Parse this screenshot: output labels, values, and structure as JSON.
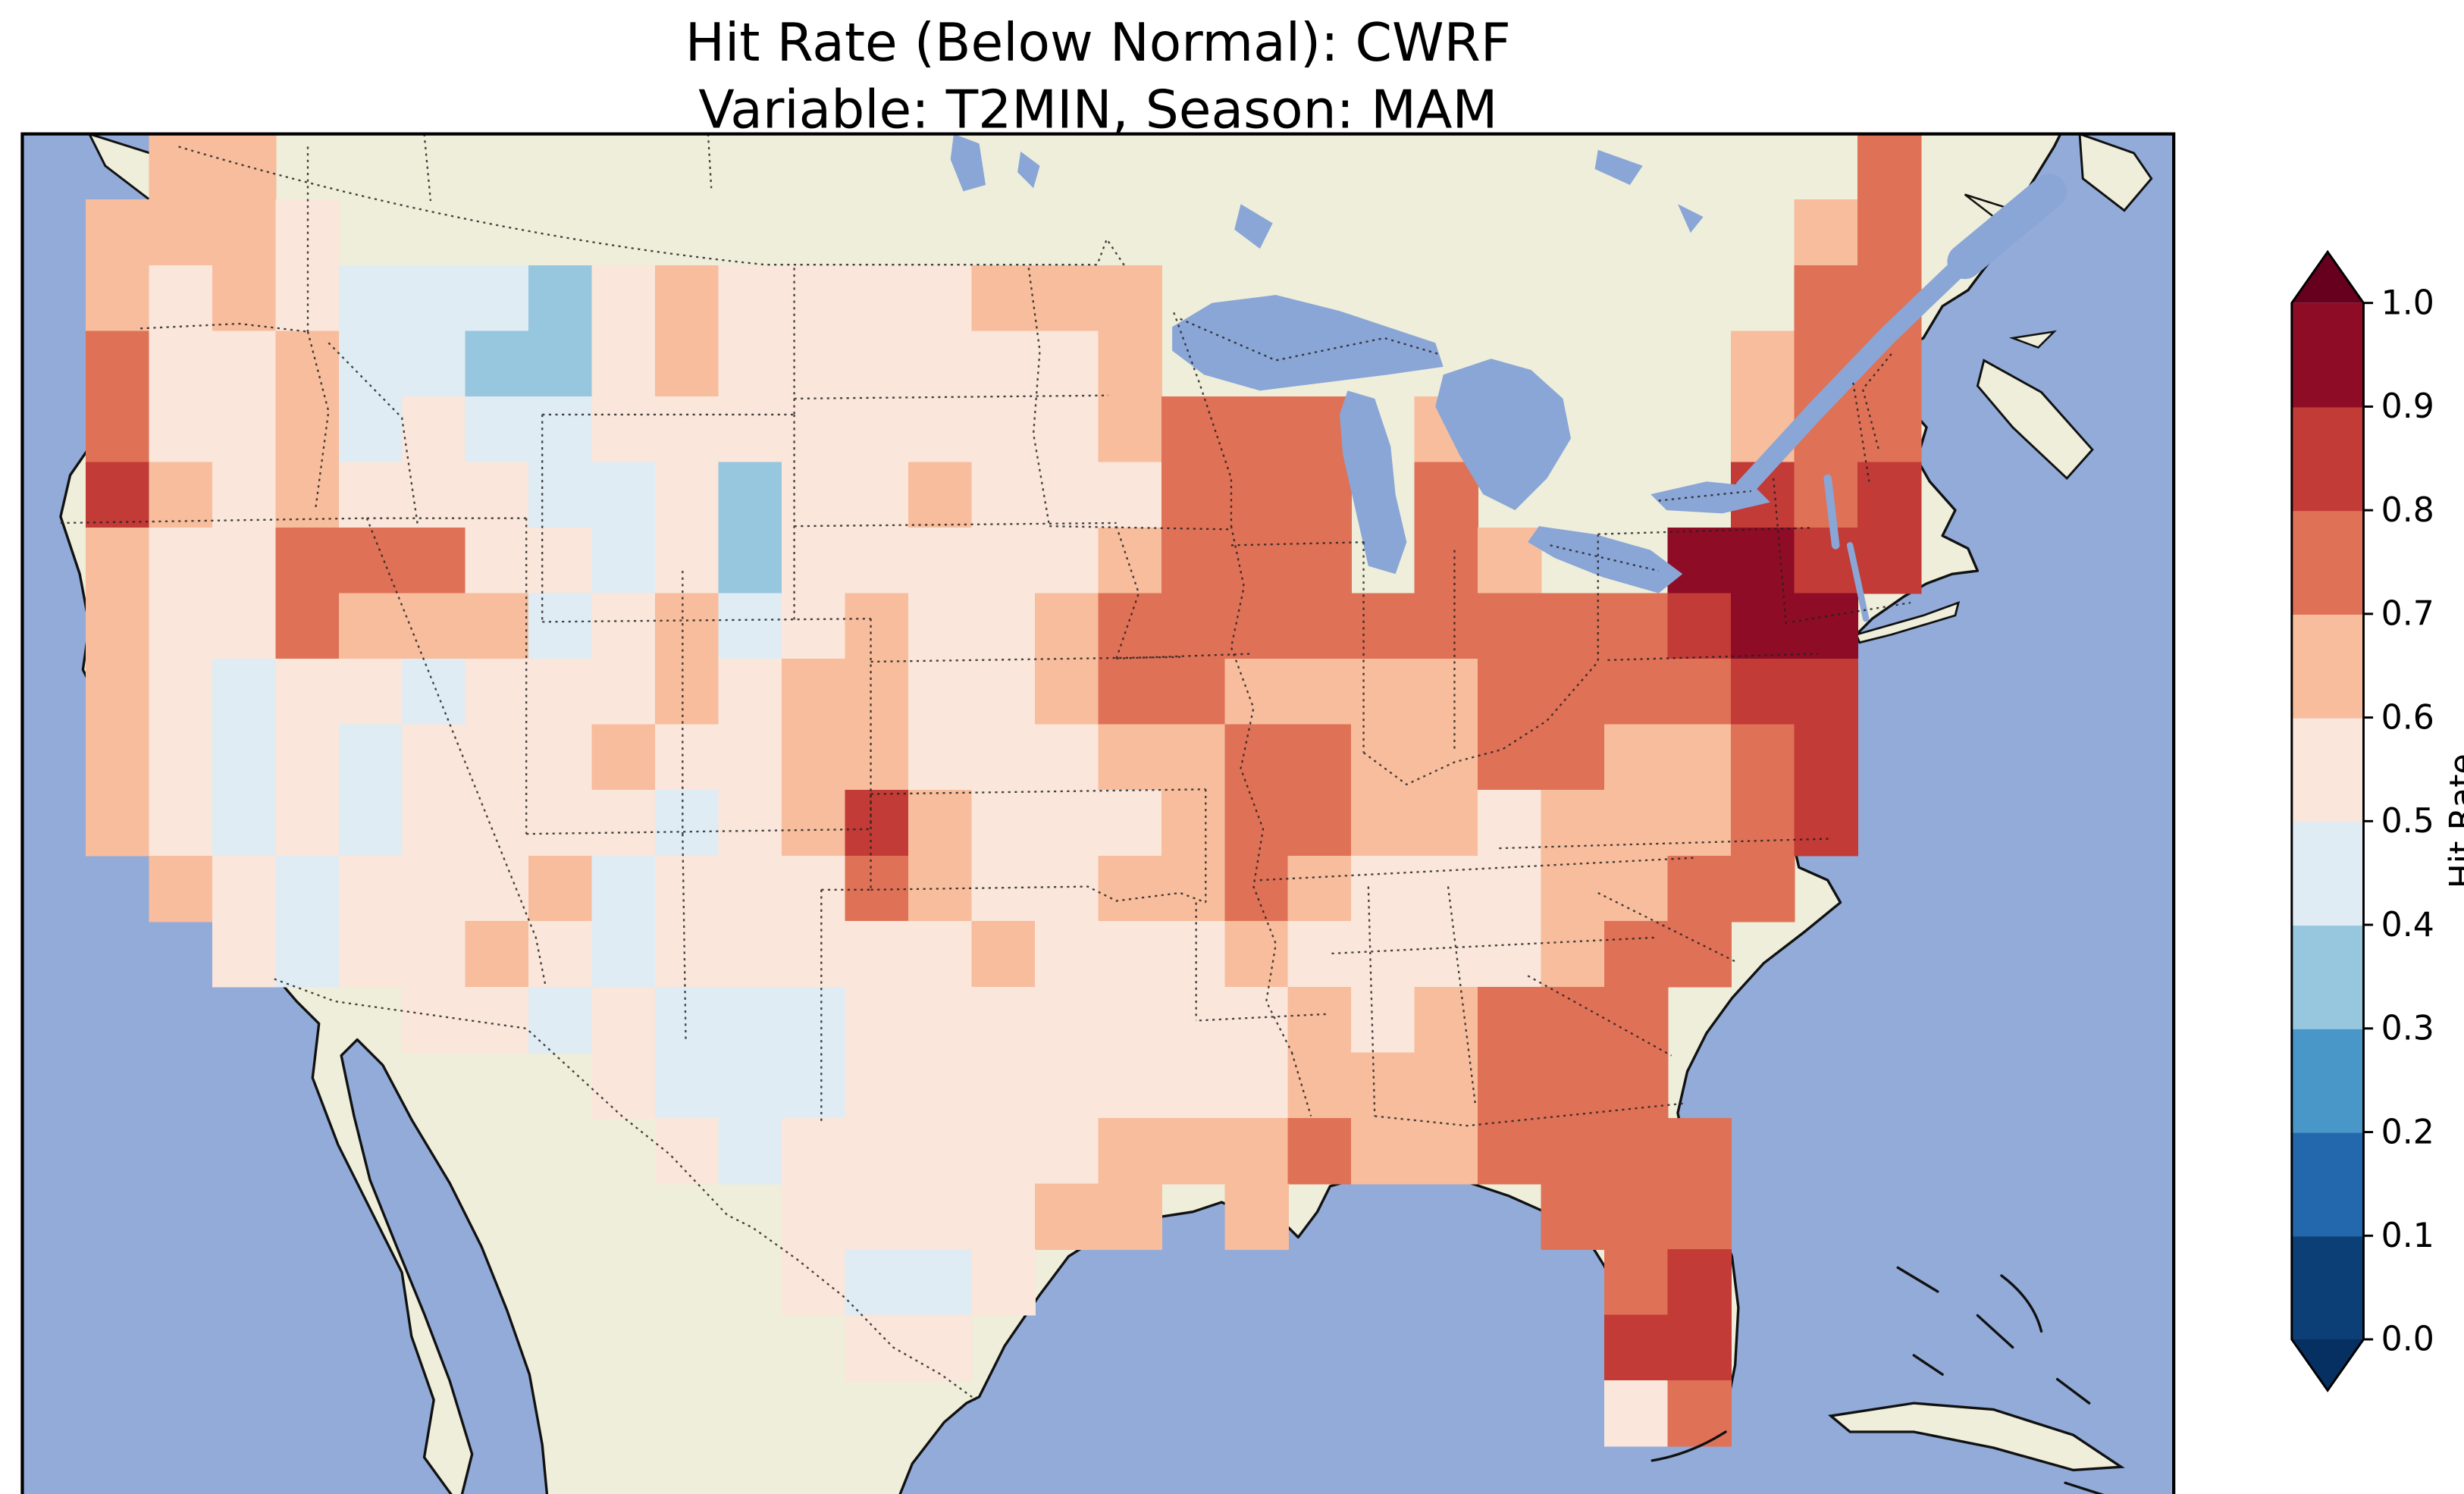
{
  "title": {
    "line1": "Hit Rate (Below Normal): CWRF",
    "line2": "Variable: T2MIN, Season: MAM"
  },
  "colorbar": {
    "label": "Hit Rate",
    "ticks": [
      "0.0",
      "0.1",
      "0.2",
      "0.3",
      "0.4",
      "0.5",
      "0.6",
      "0.7",
      "0.8",
      "0.9",
      "1.0"
    ],
    "bin_colors": [
      "#0d3f77",
      "#2368ad",
      "#4996c8",
      "#97c6df",
      "#dfecf4",
      "#fae6da",
      "#f7bd9d",
      "#df7156",
      "#c23b37",
      "#8e0c25"
    ],
    "under_color": "#053061",
    "over_color": "#67001f"
  },
  "colors": {
    "ocean": "#92abd9",
    "lake": "#8aa6d6",
    "land": "#eeeeda",
    "coastline": "#111111",
    "border_dotted": "#222222"
  },
  "chart_data": {
    "type": "heatmap",
    "title": "Hit Rate (Below Normal): CWRF",
    "subtitle": "Variable: T2MIN, Season: MAM",
    "colorbar_label": "Hit Rate",
    "value_range": [
      0.0,
      1.0
    ],
    "bin_size": 0.1,
    "legend_position": "right",
    "map_extent": "Continental United States with southern Canada, northern Mexico, Gulf of Mexico and Cuba visible",
    "notes": "Gridded hit-rate field over CONUS. High values (0.7-1.0, reds) over Midwest, Ohio Valley, Northeast (darkest >0.9 over PA/NY/NJ), Southeast coast and Florida; low values (0.2-0.5, blues) over Montana, Utah/Wyoming, Southwest and Texas panhandle; near-neutral 0.5-0.6 elsewhere.",
    "grid": {
      "cols": 34,
      "rows": 21,
      "cell_value_encoding": "runs of digits; digit d means hit-rate bin [d/10,(d+1)/10); cells not listed are outside CONUS (no data)",
      "rows_data": [
        [
          [
            2,
            "66"
          ],
          [
            29,
            "7"
          ]
        ],
        [
          [
            1,
            "6665"
          ],
          [
            28,
            "67"
          ]
        ],
        [
          [
            1,
            "65654443565555666"
          ],
          [
            28,
            "77"
          ]
        ],
        [
          [
            1,
            "75564433565555556"
          ],
          [
            27,
            "677"
          ]
        ],
        [
          [
            1,
            "75564544555555556777"
          ],
          [
            22,
            "6"
          ],
          [
            27,
            "677"
          ]
        ],
        [
          [
            1,
            "86565554453556555777"
          ],
          [
            22,
            "7"
          ],
          [
            27,
            "878"
          ]
        ],
        [
          [
            1,
            "65577755453555556777"
          ],
          [
            22,
            "76"
          ],
          [
            26,
            "9988"
          ]
        ],
        [
          [
            1,
            "65576664564565567777777"
          ],
          [
            24,
            "77899"
          ]
        ],
        [
          [
            1,
            "6545545556"
          ],
          [
            11,
            "5665567766"
          ],
          [
            21,
            "66777788"
          ]
        ],
        [
          [
            1,
            "6545455565"
          ],
          [
            11,
            "5665556677"
          ],
          [
            21,
            "66776678"
          ]
        ],
        [
          [
            1,
            "6545455554"
          ],
          [
            11,
            "5686555677"
          ],
          [
            21,
            "66566678"
          ]
        ],
        [
          [
            2,
            "654555645"
          ],
          [
            11,
            "5576556676"
          ],
          [
            21,
            "5556677"
          ]
        ],
        [
          [
            3,
            "5455654555"
          ],
          [
            13,
            "5565556555"
          ],
          [
            23,
            "5677"
          ]
        ],
        [
          [
            6,
            "55454445555555656777"
          ]
        ],
        [
          [
            9,
            "54445555555666777"
          ]
        ],
        [
          [
            10,
            "54555556667667777"
          ]
        ],
        [
          [
            12,
            "555566"
          ],
          [
            19,
            "6"
          ],
          [
            24,
            "777"
          ]
        ],
        [
          [
            12,
            "5445"
          ],
          [
            25,
            "78"
          ]
        ],
        [
          [
            13,
            "55"
          ],
          [
            25,
            "88"
          ]
        ],
        [
          [
            25,
            "57"
          ]
        ],
        []
      ]
    }
  }
}
